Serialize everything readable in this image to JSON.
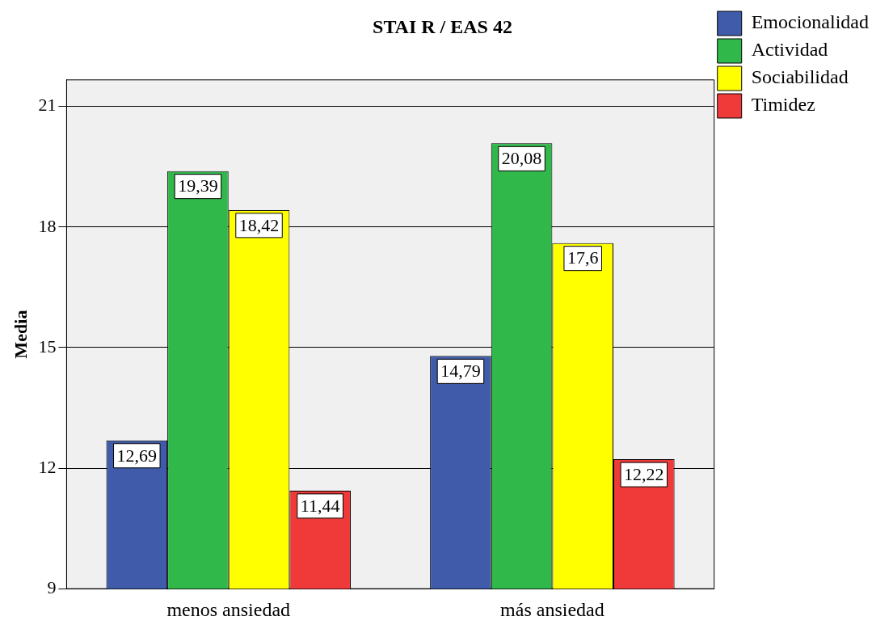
{
  "chart_data": {
    "type": "bar",
    "title": "STAI R / EAS 42",
    "ylabel": "Media",
    "categories": [
      "menos ansiedad",
      "más ansiedad"
    ],
    "series": [
      {
        "name": "Emocionalidad",
        "color": "#3f5ba9",
        "values": [
          12.69,
          14.79
        ],
        "value_labels": [
          "12,69",
          "14,79"
        ]
      },
      {
        "name": "Actividad",
        "color": "#30b84a",
        "values": [
          19.39,
          20.08
        ],
        "value_labels": [
          "19,39",
          "20,08"
        ]
      },
      {
        "name": "Sociabilidad",
        "color": "#ffff00",
        "values": [
          18.42,
          17.6
        ],
        "value_labels": [
          "18,42",
          "17,6"
        ]
      },
      {
        "name": "Timidez",
        "color": "#f03a3a",
        "values": [
          11.44,
          12.22
        ],
        "value_labels": [
          "11,44",
          "12,22"
        ]
      }
    ],
    "ylim": [
      9,
      21.66
    ],
    "yticks": [
      9,
      12,
      15,
      18,
      21
    ],
    "grid": "y",
    "legend": "top right"
  }
}
